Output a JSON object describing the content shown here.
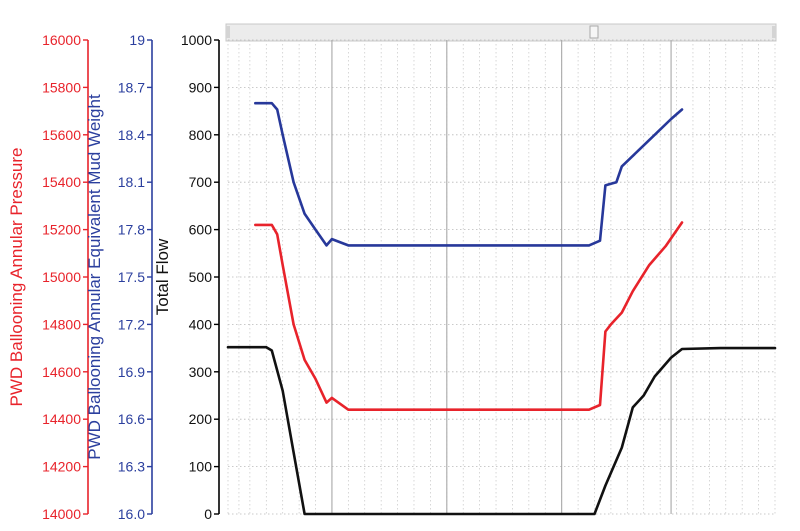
{
  "chart_data": {
    "type": "line",
    "grid": true,
    "axes": {
      "pressure": {
        "label": "PWD Ballooning Annular Pressure",
        "color": "#e8232b",
        "range": [
          14000,
          16000
        ],
        "ticks": [
          "16000",
          "15800",
          "15600",
          "15400",
          "15200",
          "15000",
          "14800",
          "14600",
          "14400",
          "14200",
          "14000"
        ]
      },
      "emw": {
        "label": "PWD Ballooning Annular Equivalent Mud Weight",
        "color": "#2b3f9e",
        "range": [
          16.0,
          19.0
        ],
        "ticks": [
          "19",
          "18.7",
          "18.4",
          "18.1",
          "17.8",
          "17.5",
          "17.2",
          "16.9",
          "16.6",
          "16.3",
          "16.0"
        ]
      },
      "flow": {
        "label": "Total Flow",
        "color": "#000000",
        "range": [
          0,
          1000
        ],
        "ticks": [
          "1000",
          "900",
          "800",
          "700",
          "600",
          "500",
          "400",
          "300",
          "200",
          "100",
          "0"
        ]
      }
    },
    "x": [
      0,
      2,
      4,
      7,
      10,
      13,
      16,
      19,
      22,
      25,
      28,
      31,
      34,
      37,
      40,
      43,
      46,
      49,
      52,
      55,
      58,
      61,
      64,
      67,
      70,
      73,
      76,
      79,
      82,
      85,
      88,
      91,
      94,
      97,
      100
    ],
    "series": [
      {
        "axis": "flow",
        "color": "#111111",
        "points": [
          [
            0,
            352
          ],
          [
            7,
            352
          ],
          [
            8,
            345
          ],
          [
            10,
            260
          ],
          [
            12,
            130
          ],
          [
            14,
            0
          ],
          [
            20,
            0
          ],
          [
            40,
            0
          ],
          [
            60,
            0
          ],
          [
            67,
            0
          ],
          [
            69,
            60
          ],
          [
            72,
            140
          ],
          [
            74,
            225
          ],
          [
            76,
            250
          ],
          [
            78,
            290
          ],
          [
            81,
            330
          ],
          [
            83,
            348
          ],
          [
            90,
            350
          ],
          [
            100,
            350
          ]
        ]
      },
      {
        "axis": "emw",
        "color": "#27389a",
        "points": [
          [
            5,
            18.6
          ],
          [
            8,
            18.6
          ],
          [
            9,
            18.56
          ],
          [
            10,
            18.4
          ],
          [
            12,
            18.1
          ],
          [
            14,
            17.9
          ],
          [
            16,
            17.8
          ],
          [
            18,
            17.7
          ],
          [
            19,
            17.74
          ],
          [
            22,
            17.7
          ],
          [
            30,
            17.7
          ],
          [
            40,
            17.7
          ],
          [
            50,
            17.7
          ],
          [
            60,
            17.7
          ],
          [
            66,
            17.7
          ],
          [
            68,
            17.73
          ],
          [
            69,
            18.08
          ],
          [
            70,
            18.09
          ],
          [
            71,
            18.1
          ],
          [
            72,
            18.2
          ],
          [
            75,
            18.3
          ],
          [
            78,
            18.4
          ],
          [
            81,
            18.5
          ],
          [
            83,
            18.56
          ]
        ]
      },
      {
        "axis": "pressure",
        "color": "#e8232b",
        "points": [
          [
            5,
            15220
          ],
          [
            8,
            15220
          ],
          [
            9,
            15180
          ],
          [
            10,
            15050
          ],
          [
            12,
            14800
          ],
          [
            14,
            14650
          ],
          [
            16,
            14570
          ],
          [
            18,
            14470
          ],
          [
            19,
            14490
          ],
          [
            22,
            14440
          ],
          [
            30,
            14440
          ],
          [
            40,
            14440
          ],
          [
            50,
            14440
          ],
          [
            60,
            14440
          ],
          [
            66,
            14440
          ],
          [
            68,
            14460
          ],
          [
            69,
            14770
          ],
          [
            70,
            14800
          ],
          [
            72,
            14850
          ],
          [
            74,
            14940
          ],
          [
            77,
            15050
          ],
          [
            80,
            15130
          ],
          [
            83,
            15230
          ]
        ]
      }
    ]
  }
}
